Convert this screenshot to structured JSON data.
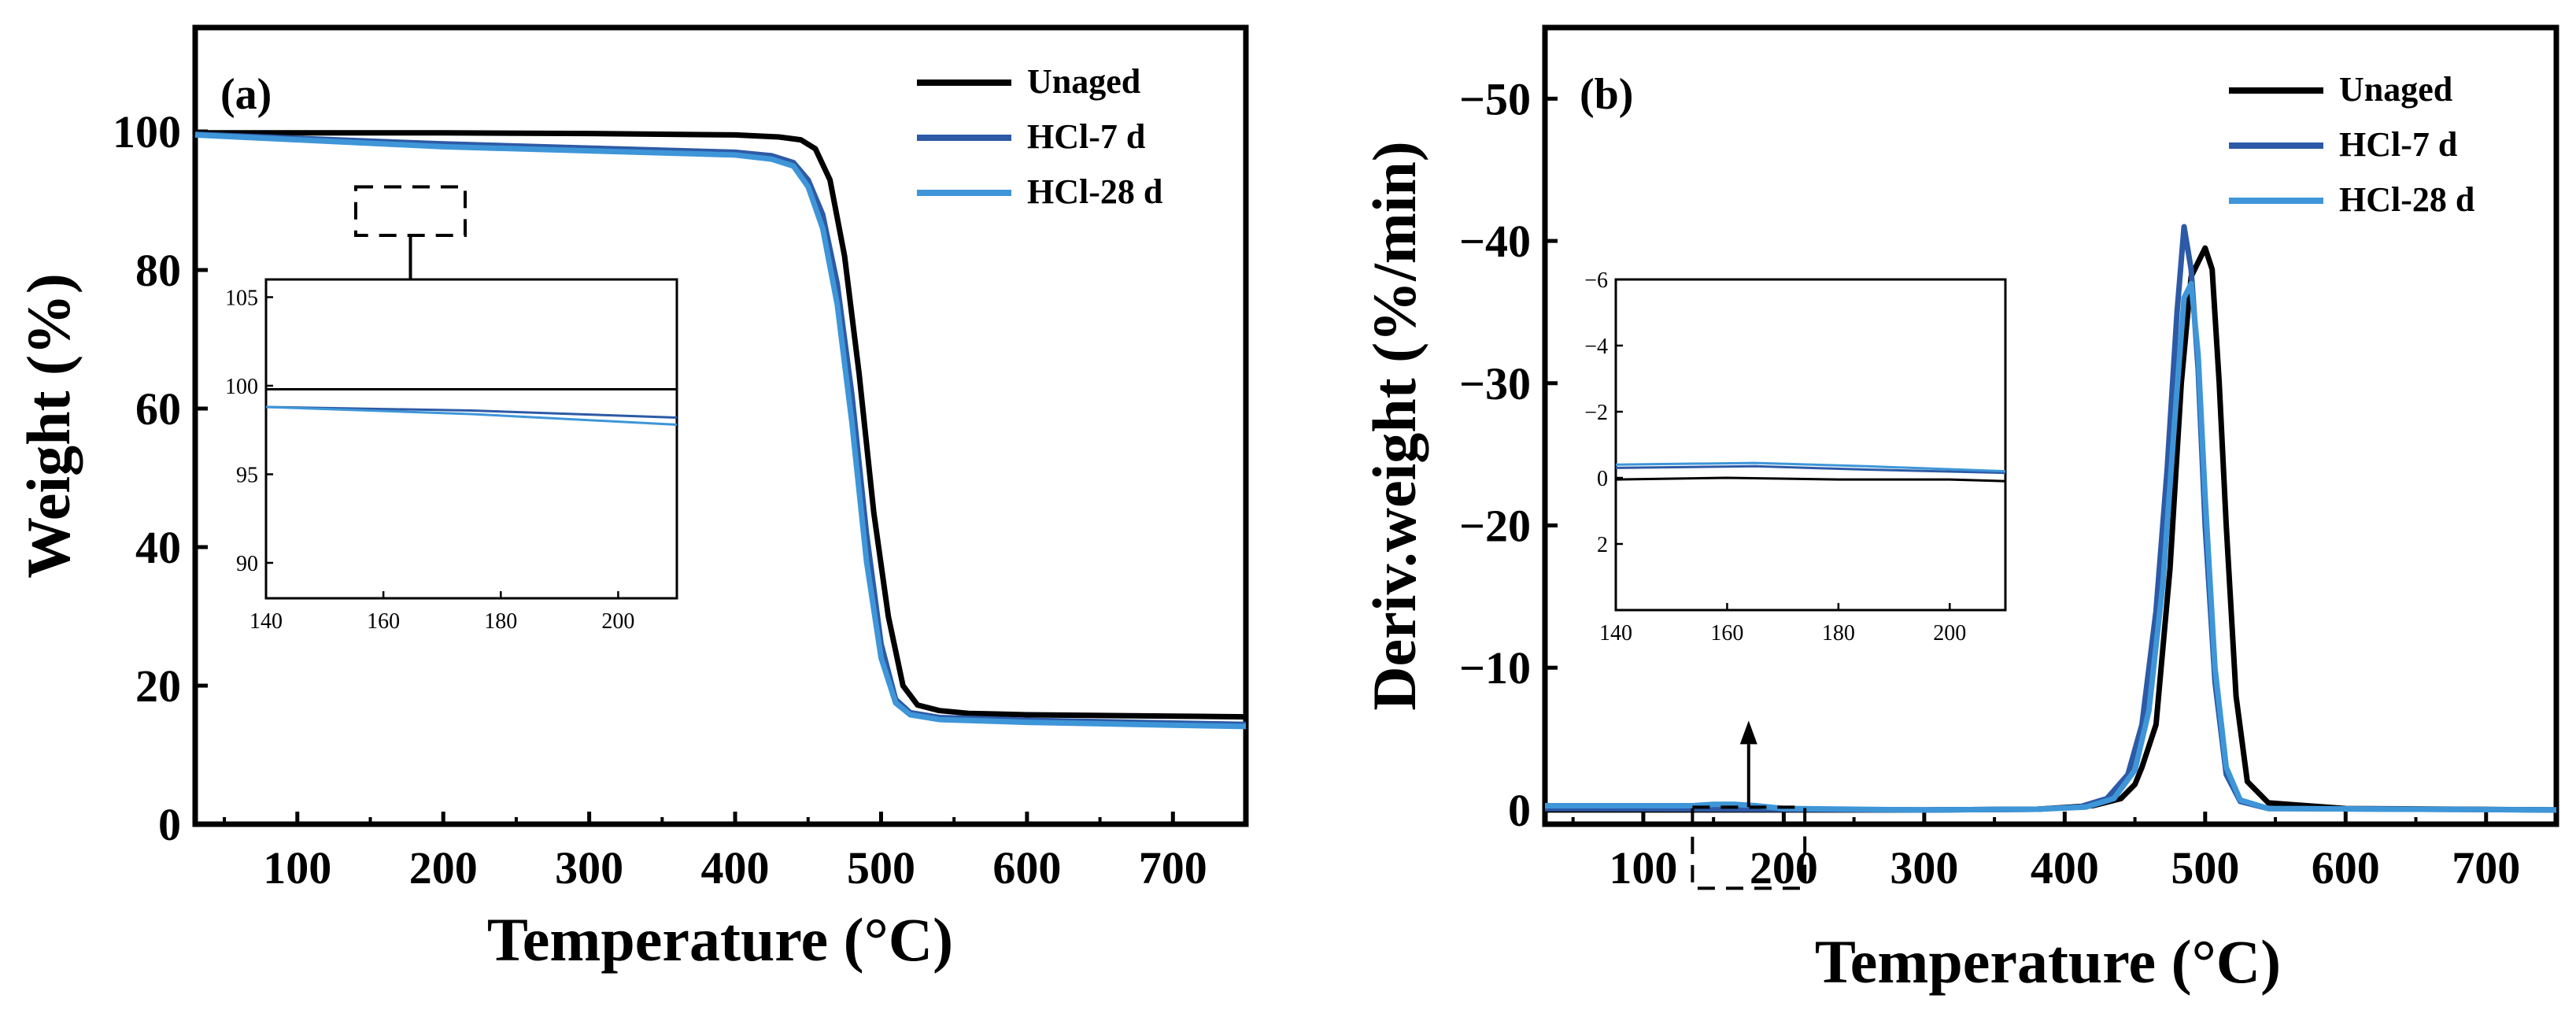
{
  "colors": {
    "unaged": "#000000",
    "hcl7": "#2d5aa6",
    "hcl28": "#3e96d8"
  },
  "chart_data": [
    {
      "type": "line",
      "panel_label": "(a)",
      "xlabel": "Temperature (°C)",
      "ylabel": "Weight (%)",
      "xlim": [
        30,
        750
      ],
      "ylim": [
        0,
        115
      ],
      "xticks": [
        100,
        200,
        300,
        400,
        500,
        600,
        700
      ],
      "yticks": [
        0,
        20,
        40,
        60,
        80,
        100
      ],
      "legend_position": "top-right",
      "series": [
        {
          "name": "Unaged",
          "color": "#000000",
          "points": [
            [
              30,
              99.8
            ],
            [
              100,
              99.8
            ],
            [
              200,
              99.8
            ],
            [
              300,
              99.7
            ],
            [
              400,
              99.5
            ],
            [
              430,
              99.2
            ],
            [
              445,
              98.8
            ],
            [
              455,
              97.5
            ],
            [
              465,
              93
            ],
            [
              475,
              82
            ],
            [
              485,
              65
            ],
            [
              495,
              45
            ],
            [
              505,
              30
            ],
            [
              515,
              20
            ],
            [
              525,
              17.2
            ],
            [
              540,
              16.4
            ],
            [
              560,
              16.0
            ],
            [
              600,
              15.8
            ],
            [
              700,
              15.6
            ],
            [
              750,
              15.5
            ]
          ]
        },
        {
          "name": "HCl-7 d",
          "color": "#2d5aa6",
          "points": [
            [
              30,
              99.6
            ],
            [
              100,
              99.0
            ],
            [
              200,
              98.2
            ],
            [
              300,
              97.6
            ],
            [
              400,
              97.0
            ],
            [
              425,
              96.5
            ],
            [
              440,
              95.5
            ],
            [
              450,
              93
            ],
            [
              460,
              88
            ],
            [
              470,
              78
            ],
            [
              480,
              62
            ],
            [
              490,
              42
            ],
            [
              500,
              26
            ],
            [
              510,
              18
            ],
            [
              520,
              16.1
            ],
            [
              540,
              15.4
            ],
            [
              600,
              15.0
            ],
            [
              700,
              14.6
            ],
            [
              750,
              14.4
            ]
          ]
        },
        {
          "name": "HCl-28 d",
          "color": "#3e96d8",
          "points": [
            [
              30,
              99.5
            ],
            [
              100,
              98.8
            ],
            [
              200,
              97.8
            ],
            [
              300,
              97.2
            ],
            [
              400,
              96.6
            ],
            [
              425,
              96.0
            ],
            [
              440,
              95.0
            ],
            [
              450,
              92
            ],
            [
              460,
              86
            ],
            [
              470,
              75
            ],
            [
              480,
              58
            ],
            [
              490,
              38
            ],
            [
              500,
              24
            ],
            [
              510,
              17.5
            ],
            [
              520,
              15.8
            ],
            [
              540,
              15.1
            ],
            [
              600,
              14.7
            ],
            [
              700,
              14.3
            ],
            [
              750,
              14.1
            ]
          ]
        }
      ],
      "inset": {
        "xlim": [
          140,
          210
        ],
        "ylim": [
          88,
          106
        ],
        "xticks": [
          140,
          160,
          180,
          200
        ],
        "yticks": [
          90,
          95,
          100,
          105
        ],
        "series": [
          {
            "name": "Unaged",
            "color": "#000000",
            "points": [
              [
                140,
                99.8
              ],
              [
                210,
                99.8
              ]
            ]
          },
          {
            "name": "HCl-7 d",
            "color": "#2d5aa6",
            "points": [
              [
                140,
                98.8
              ],
              [
                175,
                98.6
              ],
              [
                210,
                98.2
              ]
            ]
          },
          {
            "name": "HCl-28 d",
            "color": "#3e96d8",
            "points": [
              [
                140,
                98.8
              ],
              [
                175,
                98.4
              ],
              [
                210,
                97.8
              ]
            ]
          }
        ]
      }
    },
    {
      "type": "line",
      "panel_label": "(b)",
      "xlabel": "Temperature (°C)",
      "ylabel": "Deriv.weight (%/min)",
      "xlim": [
        30,
        750
      ],
      "ylim": [
        1,
        -55
      ],
      "xticks": [
        100,
        200,
        300,
        400,
        500,
        600,
        700
      ],
      "yticks": [
        0,
        -10,
        -20,
        -30,
        -40,
        -50
      ],
      "ytick_labels": [
        "0",
        "−10",
        "−20",
        "−30",
        "−40",
        "−50"
      ],
      "legend_position": "top-right",
      "series": [
        {
          "name": "Unaged",
          "color": "#000000",
          "points": [
            [
              30,
              0
            ],
            [
              200,
              0
            ],
            [
              300,
              0
            ],
            [
              380,
              -0.05
            ],
            [
              420,
              -0.3
            ],
            [
              440,
              -0.8
            ],
            [
              450,
              -1.8
            ],
            [
              455,
              -3
            ],
            [
              465,
              -6
            ],
            [
              475,
              -17
            ],
            [
              483,
              -30
            ],
            [
              490,
              -37.5
            ],
            [
              495,
              -38.5
            ],
            [
              500,
              -39.5
            ],
            [
              505,
              -38
            ],
            [
              510,
              -30
            ],
            [
              515,
              -20
            ],
            [
              522,
              -8
            ],
            [
              530,
              -2
            ],
            [
              545,
              -0.5
            ],
            [
              600,
              -0.1
            ],
            [
              750,
              0
            ]
          ]
        },
        {
          "name": "HCl-7 d",
          "color": "#2d5aa6",
          "points": [
            [
              30,
              -0.1
            ],
            [
              200,
              -0.05
            ],
            [
              300,
              0
            ],
            [
              380,
              -0.05
            ],
            [
              410,
              -0.2
            ],
            [
              430,
              -0.8
            ],
            [
              445,
              -2.5
            ],
            [
              455,
              -6
            ],
            [
              465,
              -14
            ],
            [
              473,
              -24
            ],
            [
              480,
              -35
            ],
            [
              485,
              -41
            ],
            [
              490,
              -38
            ],
            [
              495,
              -31
            ],
            [
              500,
              -20
            ],
            [
              507,
              -9
            ],
            [
              515,
              -2.5
            ],
            [
              525,
              -0.6
            ],
            [
              545,
              -0.1
            ],
            [
              750,
              0
            ]
          ]
        },
        {
          "name": "HCl-28 d",
          "color": "#3e96d8",
          "points": [
            [
              30,
              -0.3
            ],
            [
              135,
              -0.3
            ],
            [
              150,
              -0.4
            ],
            [
              165,
              -0.4
            ],
            [
              180,
              -0.3
            ],
            [
              200,
              -0.1
            ],
            [
              300,
              0
            ],
            [
              380,
              -0.05
            ],
            [
              415,
              -0.2
            ],
            [
              435,
              -0.8
            ],
            [
              450,
              -2.8
            ],
            [
              460,
              -7
            ],
            [
              470,
              -16
            ],
            [
              478,
              -27
            ],
            [
              485,
              -36
            ],
            [
              490,
              -37
            ],
            [
              495,
              -32
            ],
            [
              500,
              -22
            ],
            [
              507,
              -10
            ],
            [
              515,
              -3
            ],
            [
              525,
              -0.7
            ],
            [
              545,
              -0.1
            ],
            [
              750,
              0
            ]
          ]
        }
      ],
      "inset": {
        "xlim": [
          140,
          210
        ],
        "ylim": [
          4,
          -6
        ],
        "xticks": [
          140,
          160,
          180,
          200
        ],
        "yticks": [
          2,
          0,
          -2,
          -4,
          -6
        ],
        "ytick_labels": [
          "2",
          "0",
          "−2",
          "−4",
          "−6"
        ],
        "series": [
          {
            "name": "Unaged",
            "color": "#000000",
            "points": [
              [
                140,
                0.05
              ],
              [
                160,
                0.0
              ],
              [
                180,
                0.05
              ],
              [
                200,
                0.05
              ],
              [
                210,
                0.1
              ]
            ]
          },
          {
            "name": "HCl-7 d",
            "color": "#2d5aa6",
            "points": [
              [
                140,
                -0.3
              ],
              [
                165,
                -0.35
              ],
              [
                185,
                -0.25
              ],
              [
                210,
                -0.15
              ]
            ]
          },
          {
            "name": "HCl-28 d",
            "color": "#3e96d8",
            "points": [
              [
                140,
                -0.4
              ],
              [
                165,
                -0.45
              ],
              [
                185,
                -0.35
              ],
              [
                210,
                -0.2
              ]
            ]
          }
        ]
      }
    }
  ]
}
